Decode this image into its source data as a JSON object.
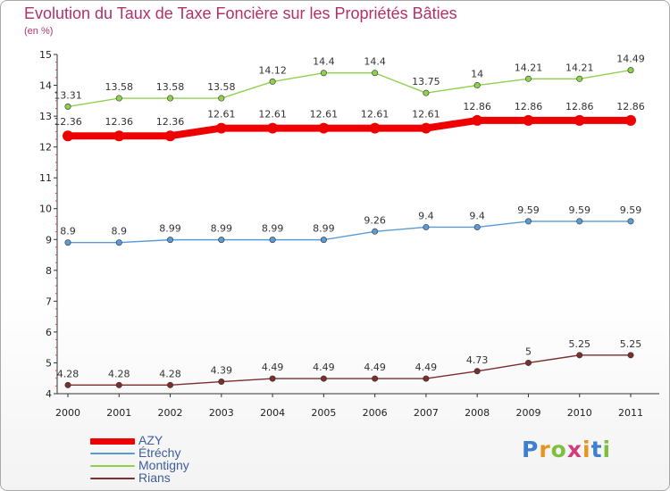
{
  "title": "Evolution du Taux de Taxe Foncière sur les Propriétés Bâties",
  "unit_label": "(en %)",
  "logo": {
    "letters": [
      "P",
      "r",
      "o",
      "x",
      "i",
      "t",
      "i"
    ],
    "colors": [
      "#3f7fd0",
      "#e6951f",
      "#7fbf3f",
      "#d23c7a",
      "#e6951f",
      "#3f7fd0",
      "#7fbf3f"
    ]
  },
  "chart_data": {
    "type": "line",
    "x": [
      "2000",
      "2001",
      "2002",
      "2003",
      "2004",
      "2005",
      "2006",
      "2007",
      "2008",
      "2009",
      "2010",
      "2011"
    ],
    "ylim": [
      4,
      15
    ],
    "yticks": [
      "4",
      "5",
      "6",
      "7",
      "8",
      "9",
      "10",
      "11",
      "12",
      "13",
      "14",
      "15"
    ],
    "grid": false,
    "legend_position": "bottom-left",
    "series": [
      {
        "name": "AZY",
        "color": "#ee0000",
        "emphasis": true,
        "values": [
          12.36,
          12.36,
          12.36,
          12.61,
          12.61,
          12.61,
          12.61,
          12.61,
          12.86,
          12.86,
          12.86,
          12.86
        ],
        "labels": [
          "12.36",
          "12.36",
          "12.36",
          "12.61",
          "12.61",
          "12.61",
          "12.61",
          "12.61",
          "12.86",
          "12.86",
          "12.86",
          "12.86"
        ]
      },
      {
        "name": "Étréchy",
        "color": "#5b9bd5",
        "emphasis": false,
        "values": [
          8.9,
          8.9,
          8.99,
          8.99,
          8.99,
          8.99,
          9.26,
          9.4,
          9.4,
          9.59,
          9.59,
          9.59
        ],
        "labels": [
          "8.9",
          "8.9",
          "8.99",
          "8.99",
          "8.99",
          "8.99",
          "9.26",
          "9.4",
          "9.4",
          "9.59",
          "9.59",
          "9.59"
        ]
      },
      {
        "name": "Montigny",
        "color": "#8fd14f",
        "emphasis": false,
        "values": [
          13.31,
          13.58,
          13.58,
          13.58,
          14.12,
          14.4,
          14.4,
          13.75,
          14,
          14.21,
          14.21,
          14.49
        ],
        "labels": [
          "13.31",
          "13.58",
          "13.58",
          "13.58",
          "14.12",
          "14.4",
          "14.4",
          "13.75",
          "14",
          "14.21",
          "14.21",
          "14.49"
        ]
      },
      {
        "name": "Rians",
        "color": "#7a2e2e",
        "emphasis": false,
        "values": [
          4.28,
          4.28,
          4.28,
          4.39,
          4.49,
          4.49,
          4.49,
          4.49,
          4.73,
          5,
          5.25,
          5.25
        ],
        "labels": [
          "4.28",
          "4.28",
          "4.28",
          "4.39",
          "4.49",
          "4.49",
          "4.49",
          "4.49",
          "4.73",
          "5",
          "5.25",
          "5.25"
        ]
      }
    ]
  }
}
